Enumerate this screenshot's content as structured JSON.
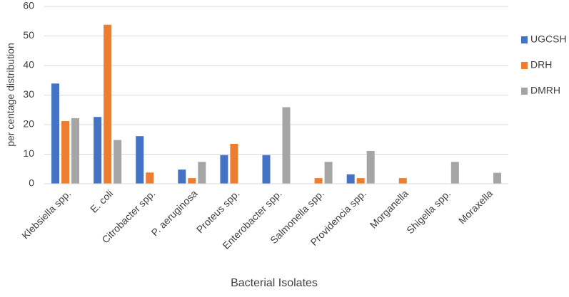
{
  "chart_data": {
    "type": "bar",
    "x_label": "Bacterial Isolates",
    "y_label": "per centage distribution",
    "categories": [
      "Klebsiella spp.",
      "E. coli",
      "Citrobacter spp.",
      "P. aeruginosa",
      "Proteus spp.",
      "Enterobacter spp.",
      "Salmonella spp.",
      "Providencia spp.",
      "Morganella",
      "Shigella spp.",
      "Moraxella"
    ],
    "series": [
      {
        "name": "UGCSH",
        "color": "#4472c4",
        "values": [
          33.9,
          22.6,
          16.1,
          4.8,
          9.7,
          9.7,
          0,
          3.2,
          0,
          0,
          0
        ]
      },
      {
        "name": "DRH",
        "color": "#ed7d31",
        "values": [
          21.2,
          53.8,
          3.8,
          1.9,
          13.5,
          0,
          1.9,
          1.9,
          1.9,
          0,
          0
        ]
      },
      {
        "name": "DMRH",
        "color": "#a5a5a5",
        "values": [
          22.2,
          14.8,
          0,
          7.4,
          0,
          25.9,
          7.4,
          11.1,
          0,
          7.4,
          3.7
        ]
      }
    ],
    "ylim": [
      0,
      60
    ],
    "yticks": [
      0,
      10,
      20,
      30,
      40,
      50,
      60
    ],
    "grid": true,
    "legend": "right"
  }
}
